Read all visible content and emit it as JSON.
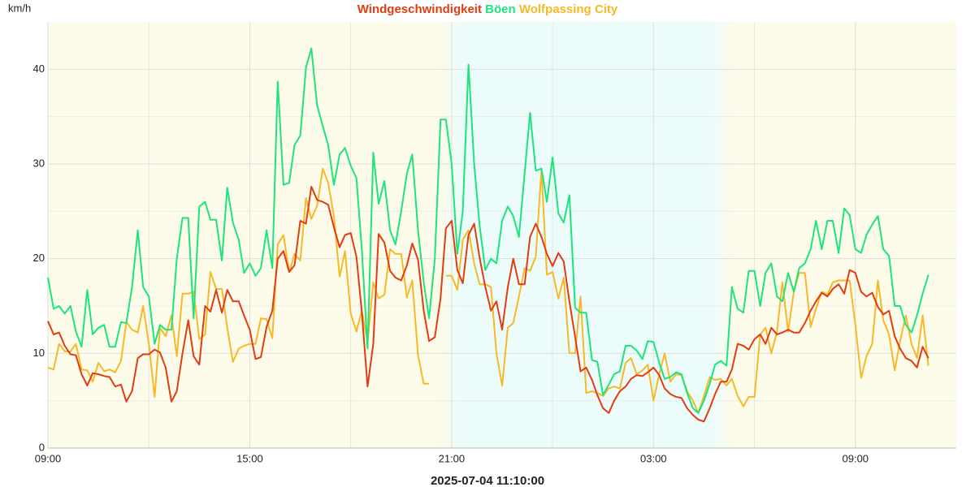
{
  "chart_data": {
    "type": "line",
    "y_label": "km/h",
    "timestamp": "2025-07-04 11:10:00",
    "xlim": [
      0,
      27
    ],
    "ylim": [
      0,
      45
    ],
    "xticks": [
      {
        "value": 0,
        "label": "09:00"
      },
      {
        "value": 6,
        "label": "15:00"
      },
      {
        "value": 12,
        "label": "21:00"
      },
      {
        "value": 18,
        "label": "03:00"
      },
      {
        "value": 24,
        "label": "09:00"
      }
    ],
    "minor_xticks": [
      3,
      9,
      15,
      21
    ],
    "yticks": [
      0,
      10,
      20,
      30,
      40
    ],
    "minor_yticks": [
      5,
      15,
      25,
      35
    ],
    "grid": true,
    "shaded_band": [
      11.6,
      20.4
    ],
    "x": [
      0,
      0.17,
      0.33,
      0.5,
      0.67,
      0.83,
      1,
      1.17,
      1.33,
      1.5,
      1.67,
      1.83,
      2,
      2.17,
      2.33,
      2.5,
      2.67,
      2.83,
      3,
      3.17,
      3.33,
      3.5,
      3.67,
      3.83,
      4,
      4.17,
      4.33,
      4.5,
      4.67,
      4.83,
      5,
      5.17,
      5.33,
      5.5,
      5.67,
      5.83,
      6,
      6.17,
      6.33,
      6.5,
      6.67,
      6.83,
      7,
      7.17,
      7.33,
      7.5,
      7.67,
      7.83,
      8,
      8.17,
      8.33,
      8.5,
      8.67,
      8.83,
      9,
      9.17,
      9.33,
      9.5,
      9.67,
      9.83,
      10,
      10.17,
      10.33,
      10.5,
      10.67,
      10.83,
      11,
      11.17,
      11.33,
      11.5,
      11.67,
      11.83,
      12,
      12.17,
      12.33,
      12.5,
      12.67,
      12.83,
      13,
      13.17,
      13.33,
      13.5,
      13.67,
      13.83,
      14,
      14.17,
      14.33,
      14.5,
      14.67,
      14.83,
      15,
      15.17,
      15.33,
      15.5,
      15.67,
      15.83,
      16,
      16.17,
      16.33,
      16.5,
      16.67,
      16.83,
      17,
      17.17,
      17.33,
      17.5,
      17.67,
      17.83,
      18,
      18.17,
      18.33,
      18.5,
      18.67,
      18.83,
      19,
      19.17,
      19.33,
      19.5,
      19.67,
      19.83,
      20,
      20.17,
      20.33,
      20.5,
      20.67,
      20.83,
      21,
      21.17,
      21.33,
      21.5,
      21.67,
      21.83,
      22,
      22.17,
      22.33,
      22.5,
      22.67,
      22.83,
      23,
      23.17,
      23.33,
      23.5,
      23.67,
      23.83,
      24,
      24.17,
      24.33,
      24.5,
      24.67,
      24.83,
      25,
      25.17,
      25.33,
      25.5,
      25.67,
      25.83,
      26,
      26.17
    ],
    "series": [
      {
        "name": "Windgeschwindigkeit",
        "color": "#e23c12",
        "values": [
          13.4,
          12,
          12.2,
          10.8,
          9.9,
          9.8,
          7.8,
          6.6,
          7.9,
          7.8,
          7.6,
          7.5,
          6.5,
          6.7,
          4.9,
          6,
          9.5,
          9.9,
          9.9,
          10.4,
          10.1,
          8.5,
          4.9,
          6,
          10,
          13.5,
          9.7,
          8.8,
          15,
          14.4,
          16.7,
          14.3,
          16.7,
          15.5,
          15.5,
          14,
          12.5,
          9.4,
          9.6,
          12.8,
          14.5,
          20,
          20.8,
          18.6,
          19.3,
          24,
          23.7,
          27.6,
          26.2,
          26,
          25.7,
          23.3,
          21.2,
          22.5,
          22.7,
          20.2,
          14.4,
          6.5,
          11,
          22.6,
          21.7,
          18.7,
          18,
          17.7,
          19.3,
          21.6,
          19.9,
          14.5,
          11.3,
          11.7,
          15.8,
          23.2,
          24,
          18.8,
          17.4,
          22.5,
          23.7,
          20.1,
          17,
          14.5,
          15.5,
          12.5,
          17,
          20,
          17.3,
          17.3,
          22.3,
          23.7,
          22.3,
          20.5,
          19.2,
          20.6,
          19.7,
          15.5,
          11.7,
          8.1,
          8.5,
          7.2,
          5.6,
          4.2,
          3.7,
          5,
          6,
          6.5,
          7.3,
          7.7,
          7.6,
          8,
          8.5,
          7.7,
          6.3,
          5.7,
          5.4,
          5.3,
          4.2,
          3.5,
          3,
          2.8,
          4.2,
          5.7,
          7,
          7,
          8.3,
          11,
          10.8,
          10.4,
          11.5,
          12,
          11,
          12.7,
          12,
          12.2,
          12.5,
          12.2,
          12.2,
          13.2,
          14.5,
          15.5,
          16.4,
          16,
          16.8,
          17.3,
          16.3,
          18.8,
          18.5,
          16.5,
          16,
          16.4,
          14.9,
          14.1,
          14.5,
          11.8,
          10.5,
          9.5,
          9.2,
          8.5,
          10.7,
          9.5
        ]
      },
      {
        "name": "Böen",
        "color": "#1ee47c",
        "values": [
          18,
          14.7,
          15,
          14.2,
          15,
          12.3,
          10.7,
          16.7,
          12,
          12.7,
          13,
          10.7,
          10.7,
          13.3,
          13.2,
          17,
          23,
          17,
          16,
          11,
          13,
          12.5,
          12.5,
          20,
          24.3,
          24.3,
          13.7,
          25.5,
          26,
          24.1,
          24.1,
          19.8,
          27.5,
          23.8,
          22,
          18.5,
          19.5,
          18.2,
          19,
          23,
          19,
          38.7,
          27.8,
          28,
          32,
          33,
          40.2,
          42.2,
          36.2,
          34,
          32,
          27.8,
          31,
          31.7,
          29.8,
          28.5,
          21,
          10.5,
          31.2,
          25.8,
          28.2,
          23,
          21.5,
          25,
          29,
          31,
          23,
          17.5,
          13.7,
          20,
          34.7,
          34.7,
          30,
          20.5,
          25,
          40.5,
          30,
          23.5,
          18.8,
          20,
          19.5,
          24,
          25.5,
          24.5,
          22.3,
          29,
          35.4,
          29.3,
          29.5,
          26,
          30.7,
          24.8,
          23.8,
          26.7,
          14.8,
          14.3,
          14.3,
          9.3,
          9.1,
          5.6,
          6.7,
          7.8,
          8.1,
          10.8,
          10.8,
          10.3,
          9.4,
          11.3,
          11.2,
          9,
          7.3,
          7.5,
          8,
          7.8,
          5.8,
          4.2,
          3.7,
          5,
          6.8,
          8.8,
          9.2,
          8.7,
          17,
          14.7,
          14.3,
          18.7,
          18.7,
          15,
          18.5,
          19.5,
          16,
          15.5,
          18.5,
          16.5,
          19,
          19.5,
          21,
          24,
          21,
          24,
          24,
          20.6,
          25.3,
          24.6,
          21,
          20.6,
          22.5,
          23.6,
          24.5,
          21,
          20.3,
          15,
          15,
          13,
          12.2,
          14,
          16.3,
          18.3
        ]
      },
      {
        "name": "Wolfpassing City",
        "color": "#f7b928",
        "values": [
          8.5,
          8.3,
          11,
          10.2,
          10.2,
          11,
          8.3,
          8.2,
          7,
          9,
          8.1,
          8.3,
          8,
          9.2,
          13.3,
          12.5,
          12.2,
          15,
          11,
          5.4,
          12.7,
          11.8,
          14,
          9.7,
          16.3,
          16.3,
          16.5,
          11.5,
          12,
          18.6,
          16.8,
          16.8,
          12.7,
          9.1,
          10.5,
          10.8,
          11,
          11,
          13.7,
          13.6,
          11.6,
          21.5,
          22.5,
          18.6,
          20.5,
          19.8,
          26.4,
          24.2,
          25.6,
          29.5,
          28,
          24.5,
          18.1,
          20.8,
          14.2,
          12.3,
          14.5,
          11.2,
          17.5,
          15.8,
          16.2,
          21,
          20.5,
          20.5,
          15.9,
          17.7,
          9.8,
          6.8,
          6.8,
          null,
          null,
          18.2,
          18.2,
          16.7,
          22,
          23,
          19.5,
          17.3,
          17.3,
          17,
          10,
          6.6,
          12.7,
          13.2,
          16,
          19,
          18.7,
          20.2,
          29.4,
          18.3,
          18.6,
          15.8,
          18,
          10,
          10,
          16,
          5.8,
          6,
          5.8,
          5.5,
          6.3,
          6.5,
          6.3,
          9,
          9.5,
          7.8,
          8.2,
          8.8,
          5,
          7.8,
          10,
          7,
          7.8,
          7.7,
          6,
          5,
          3.7,
          5.5,
          7.5,
          7.2,
          7.3,
          6.6,
          7.3,
          5.5,
          4.4,
          5.4,
          5.4,
          12,
          12.7,
          10,
          12.3,
          17.5,
          12.3,
          16.5,
          18.5,
          18.5,
          12.8,
          14.7,
          16.5,
          16.2,
          17.5,
          17.7,
          17.7,
          17.7,
          13,
          7.4,
          9.7,
          11,
          17.7,
          13.5,
          12,
          8.2,
          11.3,
          14,
          11,
          9.5,
          14,
          8.7
        ]
      }
    ]
  }
}
